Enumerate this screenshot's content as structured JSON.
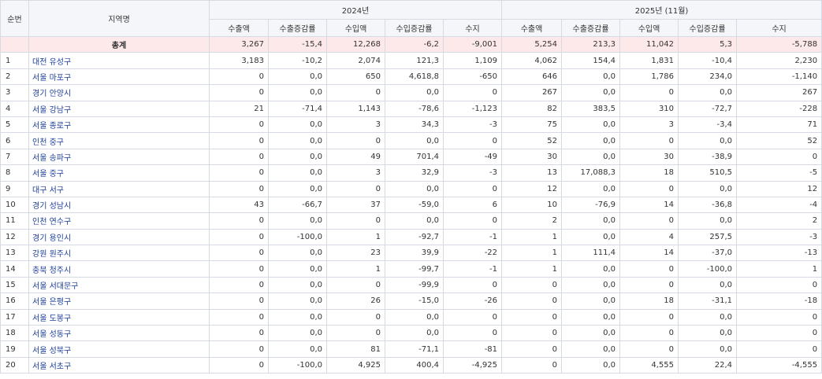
{
  "header": {
    "rank": "순번",
    "region": "지역명",
    "period1": "2024년",
    "period2": "2025년 (11월)",
    "cols": [
      "수출액",
      "수출증감률",
      "수입액",
      "수입증감률",
      "수지"
    ]
  },
  "total": {
    "label": "총계",
    "v": [
      "3,267",
      "-15,4",
      "12,268",
      "-6,2",
      "-9,001",
      "5,254",
      "213,3",
      "11,042",
      "5,3",
      "-5,788"
    ]
  },
  "rows": [
    {
      "idx": "1",
      "name": "대전 유성구",
      "v": [
        "3,183",
        "-10,2",
        "2,074",
        "121,3",
        "1,109",
        "4,062",
        "154,4",
        "1,831",
        "-10,4",
        "2,230"
      ]
    },
    {
      "idx": "2",
      "name": "서울 마포구",
      "v": [
        "0",
        "0,0",
        "650",
        "4,618,8",
        "-650",
        "646",
        "0,0",
        "1,786",
        "234,0",
        "-1,140"
      ]
    },
    {
      "idx": "3",
      "name": "경기 안양시",
      "v": [
        "0",
        "0,0",
        "0",
        "0,0",
        "0",
        "267",
        "0,0",
        "0",
        "0,0",
        "267"
      ]
    },
    {
      "idx": "4",
      "name": "서울 강남구",
      "v": [
        "21",
        "-71,4",
        "1,143",
        "-78,6",
        "-1,123",
        "82",
        "383,5",
        "310",
        "-72,7",
        "-228"
      ]
    },
    {
      "idx": "5",
      "name": "서울 종로구",
      "v": [
        "0",
        "0,0",
        "3",
        "34,3",
        "-3",
        "75",
        "0,0",
        "3",
        "-3,4",
        "71"
      ]
    },
    {
      "idx": "6",
      "name": "인천 중구",
      "v": [
        "0",
        "0,0",
        "0",
        "0,0",
        "0",
        "52",
        "0,0",
        "0",
        "0,0",
        "52"
      ]
    },
    {
      "idx": "7",
      "name": "서울 송파구",
      "v": [
        "0",
        "0,0",
        "49",
        "701,4",
        "-49",
        "30",
        "0,0",
        "30",
        "-38,9",
        "0"
      ]
    },
    {
      "idx": "8",
      "name": "서울 중구",
      "v": [
        "0",
        "0,0",
        "3",
        "32,9",
        "-3",
        "13",
        "17,088,3",
        "18",
        "510,5",
        "-5"
      ]
    },
    {
      "idx": "9",
      "name": "대구 서구",
      "v": [
        "0",
        "0,0",
        "0",
        "0,0",
        "0",
        "12",
        "0,0",
        "0",
        "0,0",
        "12"
      ]
    },
    {
      "idx": "10",
      "name": "경기 성남시",
      "v": [
        "43",
        "-66,7",
        "37",
        "-59,0",
        "6",
        "10",
        "-76,9",
        "14",
        "-36,8",
        "-4"
      ]
    },
    {
      "idx": "11",
      "name": "인천 연수구",
      "v": [
        "0",
        "0,0",
        "0",
        "0,0",
        "0",
        "2",
        "0,0",
        "0",
        "0,0",
        "2"
      ]
    },
    {
      "idx": "12",
      "name": "경기 용인시",
      "v": [
        "0",
        "-100,0",
        "1",
        "-92,7",
        "-1",
        "1",
        "0,0",
        "4",
        "257,5",
        "-3"
      ]
    },
    {
      "idx": "13",
      "name": "강원 원주시",
      "v": [
        "0",
        "0,0",
        "23",
        "39,9",
        "-22",
        "1",
        "111,4",
        "14",
        "-37,0",
        "-13"
      ]
    },
    {
      "idx": "14",
      "name": "충북 청주시",
      "v": [
        "0",
        "0,0",
        "1",
        "-99,7",
        "-1",
        "1",
        "0,0",
        "0",
        "-100,0",
        "1"
      ]
    },
    {
      "idx": "15",
      "name": "서울 서대문구",
      "v": [
        "0",
        "0,0",
        "0",
        "-99,9",
        "0",
        "0",
        "0,0",
        "0",
        "0,0",
        "0"
      ]
    },
    {
      "idx": "16",
      "name": "서울 은평구",
      "v": [
        "0",
        "0,0",
        "26",
        "-15,0",
        "-26",
        "0",
        "0,0",
        "18",
        "-31,1",
        "-18"
      ]
    },
    {
      "idx": "17",
      "name": "서울 도봉구",
      "v": [
        "0",
        "0,0",
        "0",
        "0,0",
        "0",
        "0",
        "0,0",
        "0",
        "0,0",
        "0"
      ]
    },
    {
      "idx": "18",
      "name": "서울 성동구",
      "v": [
        "0",
        "0,0",
        "0",
        "0,0",
        "0",
        "0",
        "0,0",
        "0",
        "0,0",
        "0"
      ]
    },
    {
      "idx": "19",
      "name": "서울 성북구",
      "v": [
        "0",
        "0,0",
        "81",
        "-71,1",
        "-81",
        "0",
        "0,0",
        "0",
        "0,0",
        "0"
      ]
    },
    {
      "idx": "20",
      "name": "서울 서초구",
      "v": [
        "0",
        "-100,0",
        "4,925",
        "400,4",
        "-4,925",
        "0",
        "0,0",
        "4,555",
        "22,4",
        "-4,555"
      ]
    }
  ]
}
